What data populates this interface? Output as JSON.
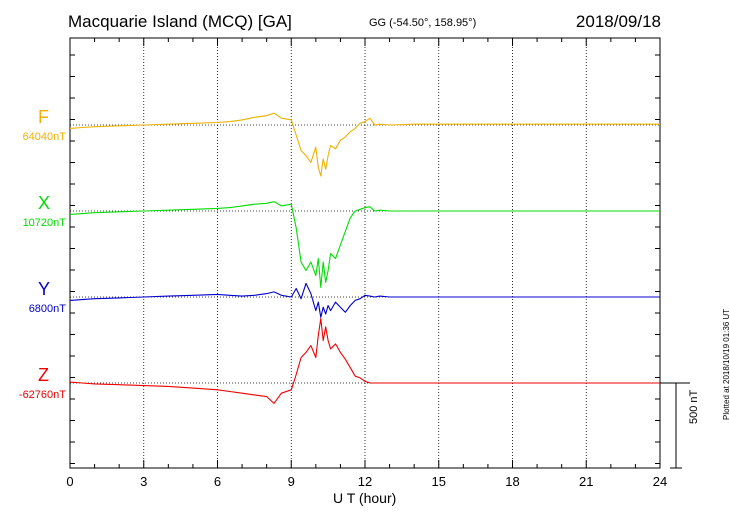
{
  "header": {
    "title": "Macquarie Island (MCQ)  [GA]",
    "coords": "GG (-54.50°, 158.95°)",
    "date": "2018/09/18"
  },
  "footer": {
    "plotted": "Plotted at 2018/10/19 01:36 UT",
    "scale_label": "500 nT"
  },
  "chart_data": {
    "type": "line",
    "xlabel": "U T (hour)",
    "xlim": [
      0,
      24
    ],
    "xticks": [
      0,
      3,
      6,
      9,
      12,
      15,
      18,
      21,
      24
    ],
    "xtick_labels": [
      "0",
      "3",
      "6",
      "9",
      "12",
      "15",
      "18",
      "21",
      "24"
    ],
    "grid": true,
    "scale_bar_nT": 500,
    "series": [
      {
        "name": "F",
        "baseline_label": "64040nT",
        "color": "#f0b000",
        "x": [
          0,
          0.5,
          1,
          2,
          3,
          4,
          5,
          6,
          6.5,
          7,
          7.5,
          8,
          8.3,
          8.6,
          9,
          9.2,
          9.4,
          9.6,
          9.8,
          10.0,
          10.1,
          10.2,
          10.3,
          10.4,
          10.5,
          10.6,
          10.8,
          11.0,
          11.2,
          11.4,
          11.6,
          11.8,
          12.0,
          12.2,
          12.4,
          12.6,
          13,
          14,
          16,
          18,
          20,
          22,
          24
        ],
        "y": [
          -20,
          -15,
          -10,
          -5,
          0,
          5,
          10,
          15,
          20,
          30,
          45,
          55,
          70,
          40,
          30,
          -60,
          -150,
          -180,
          -220,
          -130,
          -250,
          -300,
          -200,
          -260,
          -180,
          -120,
          -140,
          -90,
          -70,
          -40,
          -20,
          10,
          20,
          40,
          0,
          5,
          0,
          5,
          5,
          5,
          5,
          5,
          5
        ]
      },
      {
        "name": "X",
        "baseline_label": "10720nT",
        "color": "#00dd00",
        "x": [
          0,
          0.5,
          1,
          2,
          3,
          4,
          5,
          6,
          6.5,
          7,
          7.5,
          8,
          8.3,
          8.6,
          9,
          9.2,
          9.4,
          9.6,
          9.8,
          10.0,
          10.1,
          10.2,
          10.3,
          10.4,
          10.5,
          10.6,
          10.8,
          11.0,
          11.2,
          11.4,
          11.6,
          11.8,
          12.0,
          12.2,
          12.4,
          12.6,
          13,
          14,
          16,
          18,
          20,
          22,
          24
        ],
        "y": [
          -20,
          -15,
          -10,
          -5,
          0,
          5,
          10,
          15,
          20,
          30,
          40,
          45,
          55,
          30,
          40,
          -100,
          -300,
          -350,
          -300,
          -380,
          -280,
          -450,
          -300,
          -420,
          -350,
          -250,
          -280,
          -200,
          -120,
          -40,
          0,
          10,
          20,
          25,
          0,
          5,
          0,
          0,
          0,
          0,
          0,
          0,
          0
        ]
      },
      {
        "name": "Y",
        "baseline_label": "6800nT",
        "color": "#0000cc",
        "x": [
          0,
          0.5,
          1,
          2,
          3,
          4,
          5,
          6,
          6.5,
          7,
          7.5,
          8,
          8.3,
          8.6,
          9,
          9.2,
          9.4,
          9.6,
          9.8,
          10.0,
          10.1,
          10.2,
          10.3,
          10.4,
          10.5,
          10.6,
          10.8,
          11.0,
          11.2,
          11.4,
          11.6,
          11.8,
          12.0,
          12.2,
          12.4,
          12.6,
          13,
          14,
          16,
          18,
          20,
          22,
          24
        ],
        "y": [
          -20,
          -15,
          -10,
          -5,
          0,
          5,
          10,
          15,
          10,
          5,
          10,
          20,
          30,
          10,
          0,
          50,
          -10,
          80,
          20,
          -80,
          -30,
          -120,
          -60,
          -100,
          -50,
          -80,
          -30,
          -60,
          -90,
          -50,
          -20,
          -10,
          10,
          5,
          0,
          5,
          0,
          0,
          0,
          0,
          0,
          0,
          0
        ]
      },
      {
        "name": "Z",
        "baseline_label": "-62760nT",
        "color": "#ee0000",
        "x": [
          0,
          0.5,
          1,
          2,
          3,
          4,
          5,
          6,
          6.5,
          7,
          7.5,
          8,
          8.3,
          8.6,
          9,
          9.2,
          9.4,
          9.6,
          9.8,
          10.0,
          10.1,
          10.2,
          10.3,
          10.4,
          10.5,
          10.6,
          10.8,
          11.0,
          11.2,
          11.4,
          11.6,
          11.8,
          12.0,
          12.2,
          12.4,
          12.6,
          13,
          14,
          16,
          18,
          20,
          22,
          24
        ],
        "y": [
          5,
          0,
          -5,
          -10,
          -15,
          -20,
          -30,
          -40,
          -50,
          -60,
          -70,
          -80,
          -120,
          -60,
          -40,
          50,
          150,
          180,
          220,
          150,
          280,
          380,
          250,
          330,
          250,
          200,
          230,
          180,
          140,
          90,
          40,
          30,
          10,
          0,
          0,
          0,
          0,
          0,
          0,
          0,
          0,
          0,
          0
        ]
      }
    ]
  }
}
